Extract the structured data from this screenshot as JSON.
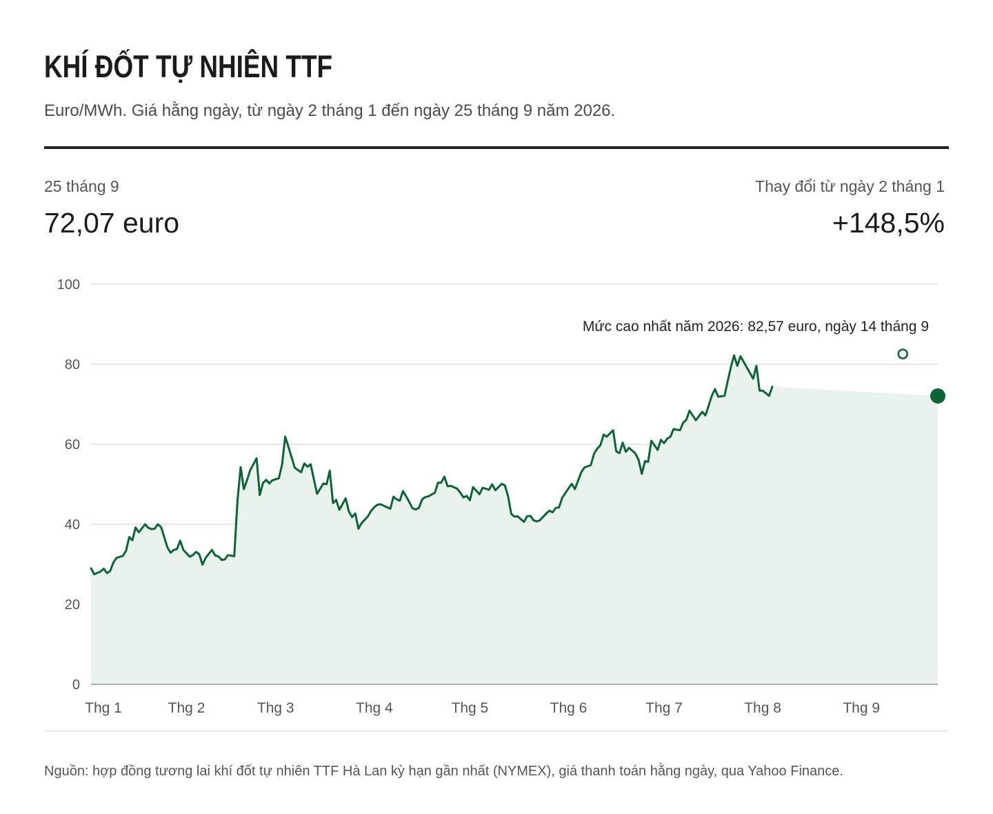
{
  "header": {
    "title": "KHÍ ĐỐT TỰ NHIÊN TTF",
    "subtitle": "Euro/MWh. Giá hằng ngày, từ ngày 2 tháng 1 đến ngày 25 tháng 9 năm 2026."
  },
  "stats": {
    "latest_label": "25 tháng 9",
    "latest_value": "72,07 euro",
    "change_label": "Thay đổi từ ngày 2 tháng 1",
    "change_value": "+148,5%"
  },
  "source": "Nguồn: hợp đồng tương lai khí đốt tự nhiên TTF Hà Lan kỳ hạn gần nhất (NYMEX), giá thanh toán hằng ngày, qua Yahoo Finance.",
  "colors": {
    "line": "#0a6435",
    "area": "#e9f2ec",
    "grid": "#d9d9d9",
    "axis": "#555555",
    "text": "#222222"
  },
  "chart_data": {
    "type": "area",
    "title": "",
    "xlabel": "",
    "ylabel": "",
    "ylim": [
      0,
      100
    ],
    "y_ticks": [
      0,
      20,
      40,
      60,
      80,
      100
    ],
    "grid": true,
    "x_tick_labels": [
      "Thg 1",
      "Thg 2",
      "Thg 3",
      "Thg 4",
      "Thg 5",
      "Thg 6",
      "Thg 7",
      "Thg 8",
      "Thg 9"
    ],
    "x_tick_dates": [
      "2026-01-01",
      "2026-02-01",
      "2026-03-01",
      "2026-04-01",
      "2026-05-01",
      "2026-06-01",
      "2026-07-01",
      "2026-08-01",
      "2026-09-01"
    ],
    "annotation": {
      "text": "Mức cao nhất năm 2026: 82,57 euro, ngày 14 tháng 9",
      "date": "2026-09-14",
      "value": 82.57
    },
    "last_point": {
      "date": "2026-09-25",
      "value": 72.07
    },
    "series": [
      {
        "points": [
          [
            "2026-01-02",
            29.0
          ],
          [
            "2026-01-03",
            27.5
          ],
          [
            "2026-01-05",
            28.2
          ],
          [
            "2026-01-06",
            28.9
          ],
          [
            "2026-01-07",
            27.8
          ],
          [
            "2026-01-08",
            28.3
          ],
          [
            "2026-01-09",
            30.4
          ],
          [
            "2026-01-10",
            31.6
          ],
          [
            "2026-01-12",
            32.1
          ],
          [
            "2026-01-13",
            33.4
          ],
          [
            "2026-01-14",
            36.8
          ],
          [
            "2026-01-15",
            36.0
          ],
          [
            "2026-01-16",
            39.2
          ],
          [
            "2026-01-17",
            38.0
          ],
          [
            "2026-01-19",
            40.0
          ],
          [
            "2026-01-20",
            39.1
          ],
          [
            "2026-01-21",
            38.8
          ],
          [
            "2026-01-22",
            38.9
          ],
          [
            "2026-01-23",
            40.0
          ],
          [
            "2026-01-24",
            39.3
          ],
          [
            "2026-01-26",
            34.2
          ],
          [
            "2026-01-27",
            32.9
          ],
          [
            "2026-01-28",
            33.6
          ],
          [
            "2026-01-29",
            33.8
          ],
          [
            "2026-01-30",
            35.9
          ],
          [
            "2026-01-31",
            33.6
          ],
          [
            "2026-02-02",
            31.9
          ],
          [
            "2026-02-03",
            32.3
          ],
          [
            "2026-02-04",
            33.1
          ],
          [
            "2026-02-05",
            32.5
          ],
          [
            "2026-02-06",
            29.9
          ],
          [
            "2026-02-07",
            31.6
          ],
          [
            "2026-02-09",
            33.6
          ],
          [
            "2026-02-10",
            32.2
          ],
          [
            "2026-02-11",
            32.0
          ],
          [
            "2026-02-12",
            31.1
          ],
          [
            "2026-02-13",
            31.2
          ],
          [
            "2026-02-14",
            32.3
          ],
          [
            "2026-02-16",
            32.0
          ],
          [
            "2026-02-17",
            46.0
          ],
          [
            "2026-02-18",
            54.3
          ],
          [
            "2026-02-19",
            48.8
          ],
          [
            "2026-02-20",
            51.0
          ],
          [
            "2026-02-21",
            53.5
          ],
          [
            "2026-02-23",
            56.5
          ],
          [
            "2026-02-24",
            47.3
          ],
          [
            "2026-02-25",
            50.3
          ],
          [
            "2026-02-26",
            51.1
          ],
          [
            "2026-02-27",
            50.2
          ],
          [
            "2026-02-28",
            51.0
          ],
          [
            "2026-03-02",
            51.5
          ],
          [
            "2026-03-03",
            54.9
          ],
          [
            "2026-03-04",
            61.9
          ],
          [
            "2026-03-05",
            59.4
          ],
          [
            "2026-03-06",
            56.8
          ],
          [
            "2026-03-07",
            54.1
          ],
          [
            "2026-03-09",
            53.0
          ],
          [
            "2026-03-10",
            55.2
          ],
          [
            "2026-03-11",
            54.4
          ],
          [
            "2026-03-12",
            55.0
          ],
          [
            "2026-03-13",
            51.2
          ],
          [
            "2026-03-14",
            47.6
          ],
          [
            "2026-03-16",
            50.2
          ],
          [
            "2026-03-17",
            50.0
          ],
          [
            "2026-03-18",
            53.4
          ],
          [
            "2026-03-19",
            45.3
          ],
          [
            "2026-03-20",
            46.1
          ],
          [
            "2026-03-21",
            43.6
          ],
          [
            "2026-03-23",
            46.5
          ],
          [
            "2026-03-24",
            43.2
          ],
          [
            "2026-03-25",
            41.8
          ],
          [
            "2026-03-26",
            42.7
          ],
          [
            "2026-03-27",
            38.9
          ],
          [
            "2026-03-28",
            40.3
          ],
          [
            "2026-03-30",
            42.0
          ],
          [
            "2026-03-31",
            43.4
          ],
          [
            "2026-04-01",
            44.3
          ],
          [
            "2026-04-02",
            44.9
          ],
          [
            "2026-04-03",
            45.0
          ],
          [
            "2026-04-04",
            44.6
          ],
          [
            "2026-04-06",
            43.9
          ],
          [
            "2026-04-07",
            46.9
          ],
          [
            "2026-04-08",
            46.2
          ],
          [
            "2026-04-09",
            45.9
          ],
          [
            "2026-04-10",
            48.3
          ],
          [
            "2026-04-11",
            47.0
          ],
          [
            "2026-04-13",
            44.0
          ],
          [
            "2026-04-14",
            43.7
          ],
          [
            "2026-04-15",
            44.1
          ],
          [
            "2026-04-16",
            46.2
          ],
          [
            "2026-04-17",
            46.8
          ],
          [
            "2026-04-18",
            47.0
          ],
          [
            "2026-04-20",
            47.9
          ],
          [
            "2026-04-21",
            50.4
          ],
          [
            "2026-04-22",
            50.4
          ],
          [
            "2026-04-23",
            51.9
          ],
          [
            "2026-04-24",
            49.5
          ],
          [
            "2026-04-25",
            49.6
          ],
          [
            "2026-04-27",
            48.9
          ],
          [
            "2026-04-28",
            47.9
          ],
          [
            "2026-04-29",
            46.7
          ],
          [
            "2026-04-30",
            47.1
          ],
          [
            "2026-05-01",
            46.0
          ],
          [
            "2026-05-02",
            49.3
          ],
          [
            "2026-05-04",
            47.5
          ],
          [
            "2026-05-05",
            49.1
          ],
          [
            "2026-05-06",
            48.9
          ],
          [
            "2026-05-07",
            48.6
          ],
          [
            "2026-05-08",
            50.0
          ],
          [
            "2026-05-09",
            48.5
          ],
          [
            "2026-05-11",
            50.1
          ],
          [
            "2026-05-12",
            49.7
          ],
          [
            "2026-05-13",
            47.0
          ],
          [
            "2026-05-14",
            42.6
          ],
          [
            "2026-05-15",
            41.9
          ],
          [
            "2026-05-16",
            42.0
          ],
          [
            "2026-05-18",
            40.6
          ],
          [
            "2026-05-19",
            42.0
          ],
          [
            "2026-05-20",
            42.1
          ],
          [
            "2026-05-21",
            41.0
          ],
          [
            "2026-05-22",
            40.7
          ],
          [
            "2026-05-23",
            41.0
          ],
          [
            "2026-05-25",
            42.7
          ],
          [
            "2026-05-26",
            43.4
          ],
          [
            "2026-05-27",
            43.0
          ],
          [
            "2026-05-28",
            44.1
          ],
          [
            "2026-05-29",
            44.2
          ],
          [
            "2026-05-30",
            46.6
          ],
          [
            "2026-06-01",
            49.0
          ],
          [
            "2026-06-02",
            50.1
          ],
          [
            "2026-06-03",
            48.8
          ],
          [
            "2026-06-04",
            50.9
          ],
          [
            "2026-06-05",
            53.0
          ],
          [
            "2026-06-06",
            54.2
          ],
          [
            "2026-06-08",
            54.8
          ],
          [
            "2026-06-09",
            57.6
          ],
          [
            "2026-06-10",
            58.9
          ],
          [
            "2026-06-11",
            59.7
          ],
          [
            "2026-06-12",
            62.4
          ],
          [
            "2026-06-13",
            61.9
          ],
          [
            "2026-06-15",
            63.5
          ],
          [
            "2026-06-16",
            58.2
          ],
          [
            "2026-06-17",
            57.8
          ],
          [
            "2026-06-18",
            60.4
          ],
          [
            "2026-06-19",
            58.1
          ],
          [
            "2026-06-20",
            59.1
          ],
          [
            "2026-06-22",
            57.7
          ],
          [
            "2026-06-23",
            56.1
          ],
          [
            "2026-06-24",
            52.6
          ],
          [
            "2026-06-25",
            55.8
          ],
          [
            "2026-06-26",
            55.6
          ],
          [
            "2026-06-27",
            60.9
          ],
          [
            "2026-06-29",
            58.6
          ],
          [
            "2026-06-30",
            61.1
          ],
          [
            "2026-07-01",
            60.3
          ],
          [
            "2026-07-02",
            61.4
          ],
          [
            "2026-07-03",
            61.9
          ],
          [
            "2026-07-04",
            63.8
          ],
          [
            "2026-07-06",
            63.5
          ],
          [
            "2026-07-07",
            65.4
          ],
          [
            "2026-07-08",
            66.1
          ],
          [
            "2026-07-09",
            68.4
          ],
          [
            "2026-07-10",
            67.2
          ],
          [
            "2026-07-11",
            66.0
          ],
          [
            "2026-07-13",
            68.1
          ],
          [
            "2026-07-14",
            67.2
          ],
          [
            "2026-07-15",
            69.6
          ],
          [
            "2026-07-16",
            72.1
          ],
          [
            "2026-07-17",
            73.8
          ],
          [
            "2026-07-18",
            71.9
          ],
          [
            "2026-07-20",
            72.1
          ],
          [
            "2026-07-21",
            75.8
          ],
          [
            "2026-07-22",
            79.3
          ],
          [
            "2026-07-23",
            82.2
          ],
          [
            "2026-07-24",
            79.6
          ],
          [
            "2026-07-25",
            82.0
          ],
          [
            "2026-07-27",
            79.2
          ],
          [
            "2026-07-28",
            77.8
          ],
          [
            "2026-07-29",
            76.4
          ],
          [
            "2026-07-30",
            79.6
          ],
          [
            "2026-07-31",
            73.4
          ],
          [
            "2026-08-01",
            73.4
          ],
          [
            "2026-08-03",
            72.1
          ],
          [
            "2026-08-04",
            74.4
          ]
        ]
      }
    ]
  }
}
